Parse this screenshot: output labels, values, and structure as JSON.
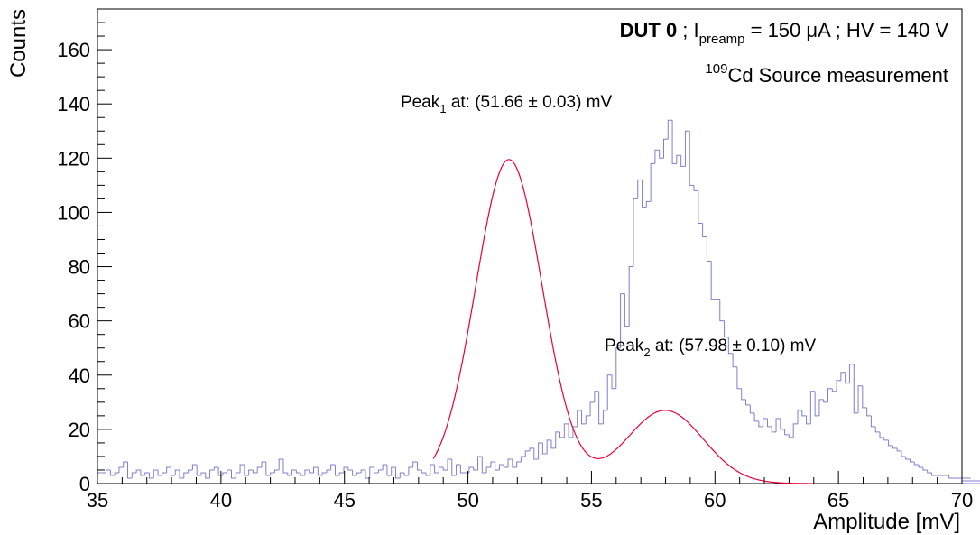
{
  "chart_data": {
    "type": "histogram",
    "xlabel": "Amplitude [mV]",
    "ylabel": "Counts",
    "xlim": [
      35,
      70
    ],
    "ylim": [
      0,
      175
    ],
    "x_ticks": [
      35,
      40,
      45,
      50,
      55,
      60,
      65,
      70
    ],
    "y_ticks": [
      0,
      20,
      40,
      60,
      80,
      100,
      120,
      140,
      160
    ],
    "grid": false,
    "colors": {
      "histogram": "#7f7fd0",
      "fit": "#e8003c"
    },
    "header": {
      "dut": "DUT 0",
      "sep1": " ; I",
      "sub": "preamp",
      "rest": " = 150 μA ; HV = 140 V"
    },
    "source": {
      "sup": "109",
      "text": "Cd Source measurement"
    },
    "annotations": [
      {
        "pre": "Peak",
        "sub": "1",
        "post": " at: (51.66 ± 0.03) mV"
      },
      {
        "pre": "Peak",
        "sub": "2",
        "post": " at: (57.98 ± 0.10) mV"
      }
    ],
    "histogram": {
      "x_start": 35,
      "bin_width": 0.175,
      "counts": [
        4,
        4,
        5,
        3,
        4,
        6,
        8,
        2,
        4,
        5,
        3,
        4,
        2,
        5,
        3,
        4,
        6,
        3,
        5,
        2,
        4,
        5,
        7,
        3,
        4,
        2,
        5,
        6,
        3,
        4,
        5,
        2,
        4,
        7,
        3,
        5,
        4,
        6,
        8,
        3,
        4,
        5,
        9,
        4,
        3,
        5,
        4,
        3,
        5,
        4,
        6,
        3,
        4,
        5,
        7,
        3,
        4,
        6,
        5,
        3,
        4,
        5,
        2,
        6,
        4,
        5,
        7,
        3,
        6,
        2,
        4,
        3,
        6,
        8,
        5,
        4,
        3,
        7,
        4,
        6,
        5,
        9,
        3,
        7,
        4,
        4,
        6,
        5,
        10,
        4,
        6,
        8,
        5,
        7,
        6,
        9,
        6,
        8,
        10,
        12,
        13,
        9,
        15,
        11,
        16,
        13,
        19,
        17,
        22,
        17,
        21,
        27,
        22,
        25,
        30,
        34,
        22,
        27,
        40,
        35,
        50,
        70,
        58,
        80,
        105,
        112,
        102,
        104,
        118,
        123,
        120,
        127,
        134,
        118,
        121,
        117,
        130,
        110,
        108,
        96,
        91,
        82,
        68,
        68,
        60,
        54,
        48,
        43,
        35,
        31,
        29,
        26,
        23,
        21,
        24,
        21,
        19,
        24,
        20,
        18,
        17,
        22,
        27,
        25,
        22,
        34,
        25,
        31,
        30,
        35,
        34,
        38,
        41,
        37,
        44,
        26,
        36,
        28,
        25,
        21,
        19,
        17,
        16,
        14,
        13,
        12,
        10,
        9,
        8,
        7,
        6,
        5,
        4,
        3,
        3,
        3,
        3,
        2,
        2,
        2,
        2,
        2,
        2,
        1,
        1,
        1,
        1,
        0,
        1,
        0,
        1,
        0,
        0,
        0,
        0,
        0,
        1,
        0,
        0,
        0,
        0,
        0,
        0,
        1,
        0,
        0,
        0,
        0,
        1,
        0
      ]
    },
    "fit": {
      "x_range": [
        48.6,
        64.0
      ],
      "components": [
        {
          "amp": 119.5,
          "mean": 51.66,
          "sigma": 1.35
        },
        {
          "amp": 27.0,
          "mean": 57.98,
          "sigma": 1.55
        }
      ],
      "x_sampled": [
        48.6,
        49.0,
        49.5,
        50.0,
        50.5,
        51.0,
        51.66,
        52.0,
        52.5,
        53.0,
        53.5,
        54.0,
        54.5,
        55.0,
        55.5,
        56.0,
        56.5,
        57.0,
        57.5,
        57.98,
        58.5,
        59.0,
        59.5,
        60.0,
        60.5,
        61.0,
        62.0,
        63.0,
        64.0
      ],
      "y_sampled": [
        14,
        17,
        33,
        58,
        88,
        109,
        120,
        115,
        100,
        76,
        52,
        36,
        24,
        18,
        16,
        17,
        20,
        24,
        26,
        27,
        26,
        24,
        21,
        16,
        12,
        8,
        3,
        1,
        0
      ]
    }
  }
}
